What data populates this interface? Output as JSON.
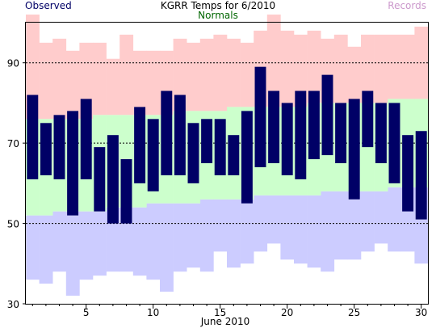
{
  "chart_data": {
    "type": "bar",
    "title": "KGRR Temps for 6/2010",
    "xlabel": "June 2010",
    "ylabel": "",
    "ylim": [
      30,
      100
    ],
    "xlim": [
      0.5,
      30.5
    ],
    "yticks": [
      30,
      50,
      70,
      90
    ],
    "xticks": [
      5,
      10,
      15,
      20,
      25,
      30
    ],
    "grid": "dashed horizontal lines at 50, 70, 90",
    "legend": "top",
    "days": [
      1,
      2,
      3,
      4,
      5,
      6,
      7,
      8,
      9,
      10,
      11,
      12,
      13,
      14,
      15,
      16,
      17,
      18,
      19,
      20,
      21,
      22,
      23,
      24,
      25,
      26,
      27,
      28,
      29,
      30
    ],
    "series": [
      {
        "name": "Observed",
        "color": "#000066",
        "high": [
          82,
          75,
          77,
          78,
          81,
          69,
          72,
          66,
          79,
          76,
          83,
          82,
          75,
          76,
          76,
          72,
          78,
          89,
          83,
          80,
          83,
          83,
          87,
          80,
          81,
          83,
          80,
          80,
          72,
          73
        ],
        "low": [
          61,
          62,
          61,
          52,
          61,
          53,
          50,
          50,
          60,
          58,
          62,
          62,
          60,
          65,
          62,
          62,
          55,
          64,
          65,
          62,
          61,
          66,
          67,
          65,
          56,
          69,
          65,
          60,
          53,
          51
        ]
      },
      {
        "name": "Normals",
        "color": "#006600",
        "fill": "#ccffcc",
        "high": [
          76,
          76,
          76,
          76,
          76,
          77,
          77,
          77,
          77,
          77,
          77,
          78,
          78,
          78,
          78,
          79,
          79,
          79,
          79,
          79,
          79,
          80,
          80,
          80,
          80,
          80,
          80,
          81,
          81,
          81
        ],
        "low": [
          52,
          52,
          53,
          53,
          53,
          53,
          54,
          54,
          54,
          55,
          55,
          55,
          55,
          56,
          56,
          56,
          56,
          57,
          57,
          57,
          57,
          57,
          58,
          58,
          58,
          58,
          58,
          59,
          59,
          59
        ]
      },
      {
        "name": "Records",
        "color": "#cc99cc",
        "high_fill": "#ffcccc",
        "low_fill": "#ccccff",
        "high": [
          102,
          95,
          96,
          93,
          95,
          95,
          91,
          97,
          93,
          93,
          93,
          96,
          95,
          96,
          97,
          96,
          95,
          98,
          102,
          98,
          97,
          98,
          96,
          97,
          94,
          97,
          97,
          97,
          97,
          99
        ],
        "low": [
          36,
          35,
          38,
          32,
          36,
          37,
          38,
          38,
          37,
          36,
          33,
          38,
          39,
          38,
          43,
          39,
          40,
          43,
          45,
          41,
          40,
          39,
          38,
          41,
          41,
          43,
          45,
          43,
          43,
          40
        ]
      }
    ]
  }
}
